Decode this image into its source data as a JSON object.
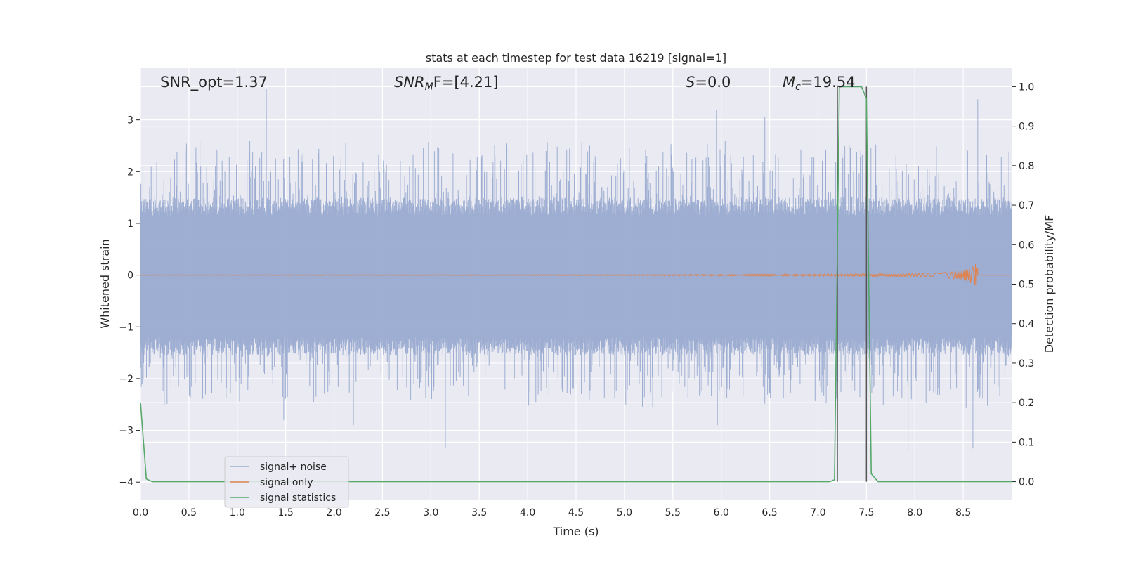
{
  "chart_data": {
    "type": "line",
    "title": "stats at each timestep for test data 16219 [signal=1]",
    "xlabel": "Time (s)",
    "ylabel": "Whitened strain",
    "y2label": "Detection probability/MF",
    "xlim": [
      0.0,
      9.0
    ],
    "ylim": [
      -4.35,
      4.0
    ],
    "y2lim": [
      -0.047,
      1.047
    ],
    "xticks": [
      "0.0",
      "0.5",
      "1.0",
      "1.5",
      "2.0",
      "2.5",
      "3.0",
      "3.5",
      "4.0",
      "4.5",
      "5.0",
      "5.5",
      "6.0",
      "6.5",
      "7.0",
      "7.5",
      "8.0",
      "8.5"
    ],
    "yticks": [
      "−4",
      "−3",
      "−2",
      "−1",
      "0",
      "1",
      "2",
      "3"
    ],
    "y2ticks": [
      "0.0",
      "0.1",
      "0.2",
      "0.3",
      "0.4",
      "0.5",
      "0.6",
      "0.7",
      "0.8",
      "0.9",
      "1.0"
    ],
    "grid": true,
    "legend_position": "lower-left",
    "annotations": {
      "snr_opt": "SNR_opt=1.37",
      "snr_mf_main": "SNR",
      "snr_mf_sub": "M",
      "snr_mf_rest": "F=[4.21]",
      "s_main": "S",
      "s_rest": "=0.0",
      "mc_main": "M",
      "mc_sub": "c",
      "mc_rest": "=19.54"
    },
    "series": [
      {
        "name": "signal+ noise",
        "color": "#9aabd0",
        "description_values": {
          "envelope_typical": [
            -1.4,
            1.3
          ],
          "peak_min": -3.4,
          "peak_max": 3.6
        },
        "spikes": [
          {
            "x": 1.3,
            "y": 3.6
          },
          {
            "x": 5.95,
            "y": 3.2
          },
          {
            "x": 6.45,
            "y": 3.05
          },
          {
            "x": 8.65,
            "y": 3.4
          },
          {
            "x": 3.15,
            "y": -3.35
          },
          {
            "x": 7.93,
            "y": -3.4
          },
          {
            "x": 8.6,
            "y": -3.35
          },
          {
            "x": 2.2,
            "y": -2.9
          },
          {
            "x": 1.48,
            "y": -2.8
          },
          {
            "x": 5.96,
            "y": -2.9
          }
        ]
      },
      {
        "name": "signal only",
        "color": "#dd8452",
        "chirp_end_x": 8.65,
        "chirp_peak_amplitude": 0.22
      },
      {
        "name": "signal statistics",
        "color": "#55a868",
        "axis": "right",
        "x": [
          0.0,
          0.06,
          0.12,
          7.12,
          7.17,
          7.22,
          7.45,
          7.5,
          7.55,
          7.62,
          9.0
        ],
        "values": [
          0.2,
          0.007,
          0.0,
          0.0,
          0.005,
          1.0,
          1.0,
          0.97,
          0.02,
          0.0,
          0.0
        ]
      }
    ],
    "markers": [
      {
        "x": 7.5,
        "color": "#555555"
      },
      {
        "x": 7.2,
        "color": "#555555"
      }
    ]
  }
}
